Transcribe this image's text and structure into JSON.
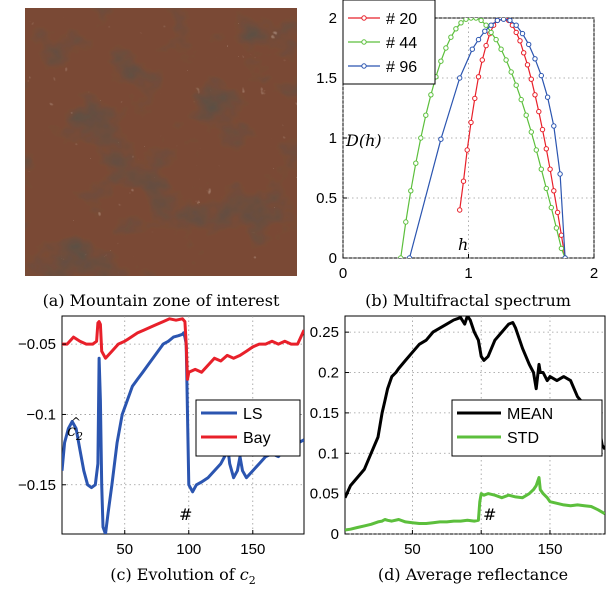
{
  "panels": {
    "a": {
      "caption": "(a)  Mountain zone of interest"
    },
    "b": {
      "caption": "(b)  Multifractal spectrum"
    },
    "c": {
      "caption_prefix": "(c)  Evolution of ",
      "caption_var": "c",
      "caption_sub": "2"
    },
    "d": {
      "caption": "(d)  Average reflectance"
    }
  },
  "colors": {
    "red": "#e8202a",
    "green": "#5cbf3c",
    "blue": "#2b55b0",
    "black": "#000000",
    "grid": "#999999",
    "terrain_base": "#7a4a34",
    "terrain_dark": "#1a1410",
    "terrain_light": "#d9b49c"
  },
  "chart_data": [
    {
      "id": "b",
      "type": "line",
      "annotations": {
        "ylabel": "D(h)",
        "xlabel": "h"
      },
      "xlim": [
        0,
        2
      ],
      "ylim": [
        0,
        2
      ],
      "xticks": [
        0,
        1,
        2
      ],
      "yticks": [
        0,
        0.5,
        1,
        1.5,
        2
      ],
      "legend_position": "top-left",
      "grid": true,
      "series": [
        {
          "name": "# 20",
          "color": "red",
          "x": [
            0.93,
            0.96,
            0.99,
            1.02,
            1.05,
            1.08,
            1.11,
            1.14,
            1.17,
            1.2,
            1.23,
            1.26,
            1.29,
            1.32,
            1.35,
            1.38,
            1.41,
            1.44,
            1.47,
            1.5,
            1.53,
            1.56,
            1.59,
            1.62,
            1.65,
            1.68,
            1.71,
            1.74,
            1.77
          ],
          "y": [
            0.4,
            0.64,
            0.9,
            1.13,
            1.33,
            1.51,
            1.65,
            1.77,
            1.87,
            1.94,
            1.98,
            2.0,
            2.0,
            1.98,
            1.94,
            1.88,
            1.81,
            1.71,
            1.61,
            1.49,
            1.36,
            1.22,
            1.07,
            0.91,
            0.74,
            0.56,
            0.38,
            0.19,
            0.0
          ]
        },
        {
          "name": "# 44",
          "color": "green",
          "x": [
            0.46,
            0.5,
            0.54,
            0.58,
            0.62,
            0.66,
            0.7,
            0.74,
            0.78,
            0.82,
            0.86,
            0.9,
            0.94,
            0.98,
            1.02,
            1.06,
            1.1,
            1.14,
            1.18,
            1.22,
            1.26,
            1.3,
            1.34,
            1.38,
            1.42,
            1.46,
            1.5,
            1.54,
            1.58,
            1.62,
            1.66,
            1.7,
            1.74,
            1.77
          ],
          "y": [
            0.0,
            0.3,
            0.56,
            0.79,
            1.0,
            1.19,
            1.36,
            1.51,
            1.64,
            1.75,
            1.84,
            1.91,
            1.96,
            1.99,
            2.0,
            2.0,
            1.98,
            1.94,
            1.88,
            1.82,
            1.74,
            1.65,
            1.55,
            1.44,
            1.32,
            1.19,
            1.05,
            0.9,
            0.74,
            0.58,
            0.42,
            0.25,
            0.08,
            0.0
          ]
        },
        {
          "name": "# 96",
          "color": "blue",
          "x": [
            0.53,
            0.78,
            0.93,
            1.03,
            1.08,
            1.13,
            1.18,
            1.23,
            1.28,
            1.33,
            1.38,
            1.43,
            1.48,
            1.53,
            1.58,
            1.63,
            1.68,
            1.73,
            1.77
          ],
          "y": [
            0.0,
            0.99,
            1.5,
            1.74,
            1.82,
            1.89,
            1.94,
            1.98,
            1.99,
            1.98,
            1.94,
            1.87,
            1.78,
            1.66,
            1.52,
            1.34,
            1.1,
            0.7,
            0.0
          ]
        }
      ]
    },
    {
      "id": "c",
      "type": "line",
      "annotations": {
        "label_var": "c",
        "label_sub": "2",
        "marker": "#"
      },
      "xlim": [
        1,
        190
      ],
      "ylim": [
        -0.185,
        -0.03
      ],
      "xticks": [
        50,
        100,
        150
      ],
      "yticks": [
        -0.05,
        -0.1,
        -0.15
      ],
      "ytick_labels": [
        "−0.05",
        "−0.1",
        "−0.15"
      ],
      "legend_position": "center-right",
      "grid": true,
      "series": [
        {
          "name": "LS",
          "color": "blue",
          "x": [
            1,
            3,
            6,
            9,
            12,
            15,
            18,
            21,
            24,
            27,
            29,
            30,
            31,
            32,
            33,
            35,
            37,
            40,
            44,
            48,
            52,
            56,
            60,
            64,
            68,
            72,
            76,
            80,
            84,
            88,
            92,
            95,
            96,
            97,
            98,
            99,
            100,
            103,
            106,
            110,
            115,
            120,
            125,
            128,
            130,
            132,
            135,
            138,
            140,
            142,
            145,
            150,
            155,
            160,
            165,
            170,
            175,
            180,
            183,
            186,
            190
          ],
          "y": [
            -0.14,
            -0.12,
            -0.11,
            -0.105,
            -0.11,
            -0.125,
            -0.14,
            -0.15,
            -0.152,
            -0.15,
            -0.135,
            -0.06,
            -0.09,
            -0.15,
            -0.18,
            -0.185,
            -0.17,
            -0.15,
            -0.12,
            -0.1,
            -0.09,
            -0.08,
            -0.075,
            -0.07,
            -0.065,
            -0.06,
            -0.055,
            -0.05,
            -0.048,
            -0.045,
            -0.044,
            -0.043,
            -0.042,
            -0.045,
            -0.05,
            -0.1,
            -0.15,
            -0.155,
            -0.15,
            -0.148,
            -0.145,
            -0.14,
            -0.135,
            -0.13,
            -0.12,
            -0.135,
            -0.145,
            -0.14,
            -0.13,
            -0.14,
            -0.145,
            -0.14,
            -0.135,
            -0.13,
            -0.128,
            -0.13,
            -0.125,
            -0.12,
            -0.118,
            -0.12,
            -0.118
          ]
        },
        {
          "name": "Bay",
          "color": "red",
          "x": [
            1,
            5,
            10,
            15,
            20,
            25,
            28,
            29,
            30,
            31,
            32,
            35,
            40,
            45,
            50,
            55,
            60,
            65,
            70,
            75,
            80,
            85,
            90,
            95,
            97,
            98,
            99,
            100,
            105,
            110,
            115,
            120,
            125,
            130,
            135,
            140,
            145,
            150,
            155,
            160,
            165,
            170,
            175,
            180,
            185,
            190
          ],
          "y": [
            -0.05,
            -0.05,
            -0.045,
            -0.048,
            -0.05,
            -0.05,
            -0.048,
            -0.035,
            -0.034,
            -0.036,
            -0.055,
            -0.06,
            -0.055,
            -0.05,
            -0.048,
            -0.045,
            -0.042,
            -0.04,
            -0.038,
            -0.036,
            -0.034,
            -0.032,
            -0.033,
            -0.032,
            -0.034,
            -0.05,
            -0.075,
            -0.07,
            -0.068,
            -0.07,
            -0.065,
            -0.06,
            -0.062,
            -0.058,
            -0.06,
            -0.058,
            -0.055,
            -0.052,
            -0.05,
            -0.05,
            -0.048,
            -0.05,
            -0.048,
            -0.05,
            -0.05,
            -0.04
          ]
        }
      ]
    },
    {
      "id": "d",
      "type": "line",
      "annotations": {
        "marker": "#"
      },
      "xlim": [
        1,
        190
      ],
      "ylim": [
        0,
        0.27
      ],
      "xticks": [
        50,
        100,
        150
      ],
      "yticks": [
        0,
        0.05,
        0.1,
        0.15,
        0.2,
        0.25
      ],
      "ytick_labels": [
        "0",
        "0.05",
        "0.1",
        "0.15",
        "0.2",
        "0.25"
      ],
      "legend_position": "center-right",
      "grid": true,
      "series": [
        {
          "name": "MEAN",
          "color": "black",
          "x": [
            1,
            5,
            10,
            15,
            20,
            25,
            28,
            30,
            32,
            35,
            38,
            40,
            45,
            50,
            55,
            60,
            65,
            70,
            75,
            80,
            85,
            88,
            90,
            92,
            95,
            98,
            100,
            102,
            105,
            110,
            115,
            120,
            123,
            125,
            130,
            135,
            138,
            140,
            142,
            143,
            145,
            148,
            150,
            155,
            160,
            165,
            170,
            175,
            178,
            180,
            185,
            188,
            190
          ],
          "y": [
            0.045,
            0.06,
            0.07,
            0.08,
            0.1,
            0.12,
            0.15,
            0.165,
            0.18,
            0.195,
            0.2,
            0.205,
            0.215,
            0.225,
            0.235,
            0.24,
            0.25,
            0.255,
            0.26,
            0.265,
            0.268,
            0.26,
            0.27,
            0.265,
            0.25,
            0.24,
            0.22,
            0.215,
            0.22,
            0.24,
            0.25,
            0.26,
            0.262,
            0.255,
            0.23,
            0.21,
            0.2,
            0.18,
            0.21,
            0.2,
            0.2,
            0.19,
            0.195,
            0.19,
            0.195,
            0.19,
            0.17,
            0.16,
            0.14,
            0.15,
            0.14,
            0.11,
            0.105
          ]
        },
        {
          "name": "STD",
          "color": "green",
          "x": [
            1,
            5,
            10,
            15,
            20,
            25,
            28,
            30,
            32,
            35,
            40,
            45,
            50,
            55,
            60,
            65,
            70,
            75,
            80,
            85,
            90,
            95,
            98,
            99,
            100,
            102,
            105,
            110,
            115,
            120,
            125,
            130,
            135,
            138,
            140,
            142,
            143,
            145,
            148,
            150,
            155,
            160,
            165,
            170,
            175,
            180,
            185,
            190
          ],
          "y": [
            0.005,
            0.006,
            0.008,
            0.01,
            0.012,
            0.015,
            0.016,
            0.018,
            0.017,
            0.016,
            0.018,
            0.015,
            0.014,
            0.013,
            0.013,
            0.014,
            0.015,
            0.015,
            0.016,
            0.016,
            0.017,
            0.016,
            0.017,
            0.04,
            0.05,
            0.048,
            0.05,
            0.048,
            0.045,
            0.048,
            0.046,
            0.045,
            0.05,
            0.055,
            0.06,
            0.07,
            0.055,
            0.05,
            0.045,
            0.04,
            0.038,
            0.036,
            0.035,
            0.036,
            0.035,
            0.034,
            0.03,
            0.025
          ]
        }
      ]
    }
  ]
}
